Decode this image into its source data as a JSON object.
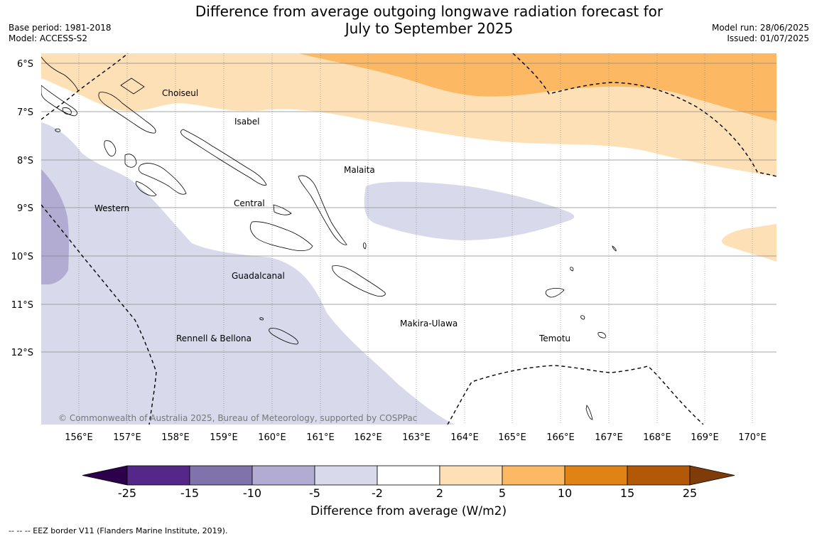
{
  "title": {
    "line1": "Difference from average outgoing longwave radiation forecast for",
    "line2": "July to September 2025"
  },
  "meta": {
    "base_period": "Base period: 1981-2018",
    "model": "Model: ACCESS-S2",
    "model_run": "Model run: 28/06/2025",
    "issued": "Issued: 01/07/2025"
  },
  "map": {
    "lat_labels": [
      "6°S",
      "7°S",
      "8°S",
      "9°S",
      "10°S",
      "11°S",
      "12°S"
    ],
    "lon_labels": [
      "156°E",
      "157°E",
      "158°E",
      "159°E",
      "160°E",
      "161°E",
      "162°E",
      "163°E",
      "164°E",
      "165°E",
      "166°E",
      "167°E",
      "168°E",
      "169°E",
      "170°E"
    ],
    "regions": {
      "choiseul": "Choiseul",
      "isabel": "Isabel",
      "malaita": "Malaita",
      "western": "Western",
      "central": "Central",
      "guadalcanal": "Guadalcanal",
      "makira": "Makira-Ulawa",
      "rennell": "Rennell & Bellona",
      "temotu": "Temotu"
    },
    "copyright": "© Commonwealth of Australia 2025, Bureau of Meteorology, supported by COSPPac"
  },
  "colorbar": {
    "title": "Difference from average (W/m2)",
    "ticks": [
      "-25",
      "-15",
      "-10",
      "-5",
      "-2",
      "2",
      "5",
      "10",
      "15",
      "25"
    ],
    "colors": [
      "#2d004b",
      "#542788",
      "#8073ac",
      "#b2abd2",
      "#d8daeb",
      "#ffffff",
      "#fee0b6",
      "#fdb863",
      "#e08214",
      "#b35806",
      "#7f3b08"
    ]
  },
  "footnote": "--  --  -- EEZ border V11 (Flanders Marine Institute, 2019)."
}
